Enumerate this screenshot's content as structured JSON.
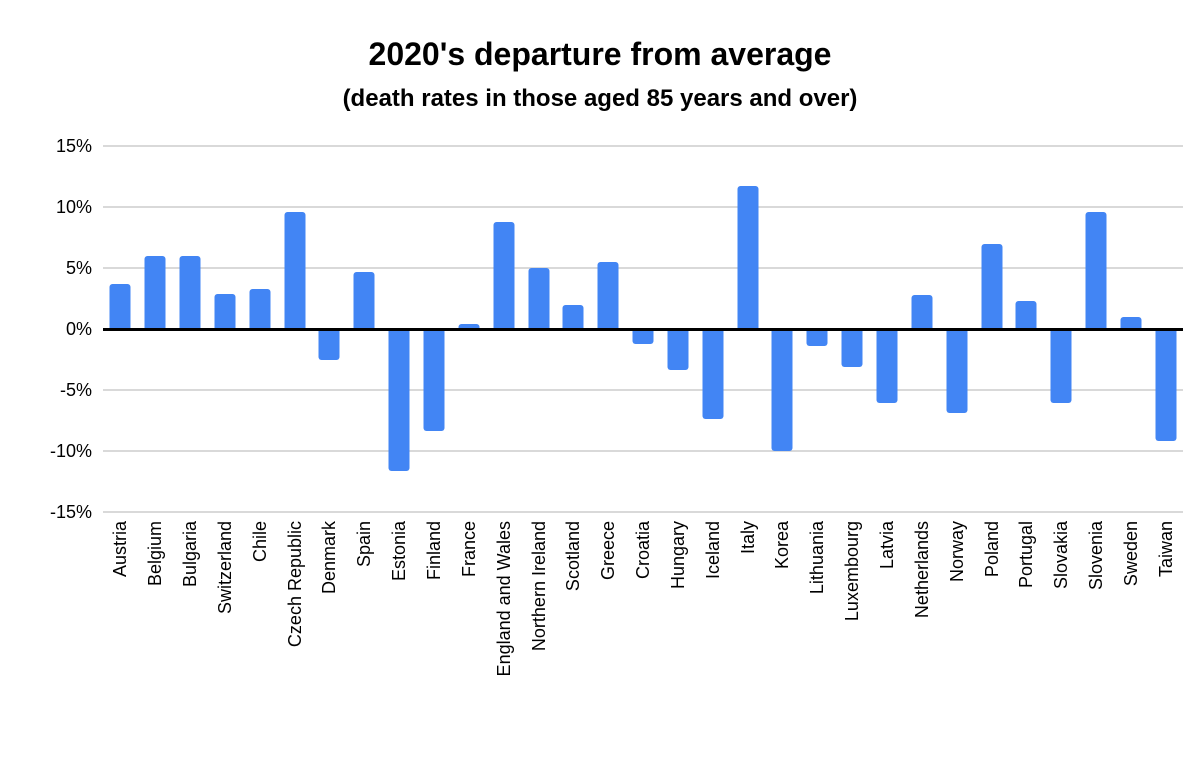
{
  "chart_data": {
    "type": "bar",
    "title": "2020's departure from average",
    "subtitle": "(death rates in those aged 85 years and over)",
    "xlabel": "",
    "ylabel": "",
    "value_unit": "%",
    "ylim": [
      -15,
      15
    ],
    "yticks": [
      15,
      10,
      5,
      0,
      -5,
      -10,
      -15
    ],
    "ytick_labels": [
      "15%",
      "10%",
      "5%",
      "0%",
      "-5%",
      "-10%",
      "-15%"
    ],
    "grid": true,
    "legend_position": "none",
    "bar_color": "#4285F4",
    "gridline_color": "#d9d9d9",
    "zero_line_color": "#000000",
    "background_color": "#ffffff",
    "categories": [
      "Austria",
      "Belgium",
      "Bulgaria",
      "Switzerland",
      "Chile",
      "Czech Republic",
      "Denmark",
      "Spain",
      "Estonia",
      "Finland",
      "France",
      "England and Wales",
      "Northern Ireland",
      "Scotland",
      "Greece",
      "Croatia",
      "Hungary",
      "Iceland",
      "Italy",
      "Korea",
      "Lithuania",
      "Luxembourg",
      "Latvia",
      "Netherlands",
      "Norway",
      "Poland",
      "Portugal",
      "Slovakia",
      "Slovenia",
      "Sweden",
      "Taiwan"
    ],
    "values": [
      3.7,
      6.0,
      6.0,
      2.9,
      3.3,
      9.6,
      -2.5,
      4.7,
      -11.6,
      -8.4,
      0.4,
      8.8,
      5.0,
      2.0,
      5.5,
      -1.2,
      -3.4,
      -7.4,
      11.7,
      -10.0,
      -1.4,
      -3.1,
      -6.1,
      2.8,
      -6.9,
      7.0,
      2.3,
      -6.1,
      9.6,
      1.0,
      -9.2
    ]
  }
}
